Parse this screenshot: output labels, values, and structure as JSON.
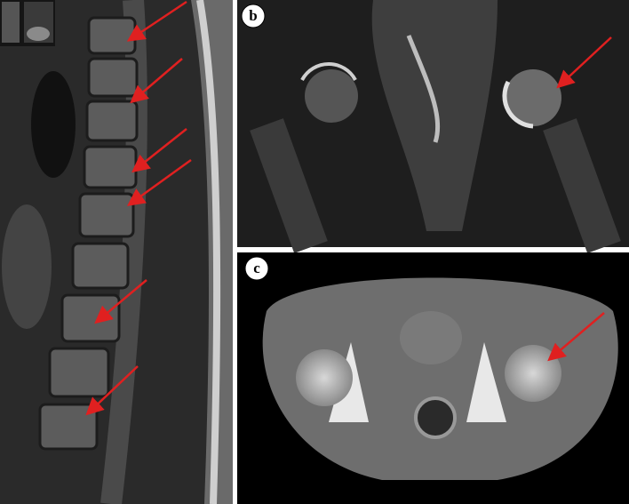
{
  "labels": [
    "b",
    "c"
  ]
}
